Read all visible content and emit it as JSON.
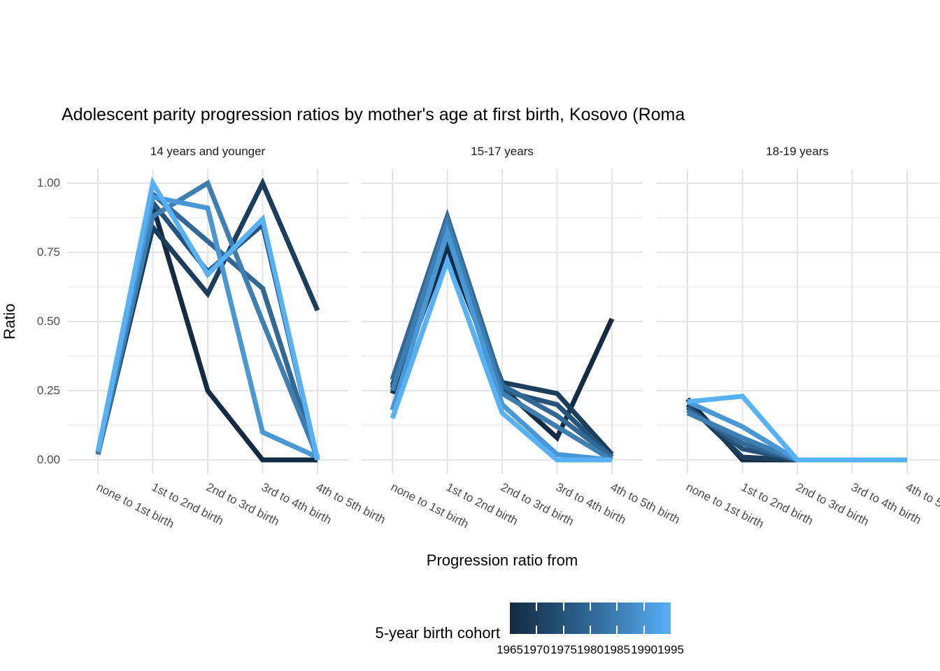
{
  "page": {
    "background": "#ffffff"
  },
  "chart_data": {
    "type": "line",
    "title": "Adolescent parity progression ratios by mother's age at first birth,  Kosovo (Roma",
    "xlabel": "Progression ratio from",
    "ylabel": "Ratio",
    "categories": [
      "none to 1st birth",
      "1st to 2nd birth",
      "2nd to 3rd birth",
      "3rd to 4th birth",
      "4th to 5th birth"
    ],
    "y_ticks": {
      "values": [
        1.0,
        0.75,
        0.5,
        0.25,
        0.0
      ],
      "labels": [
        "1.00",
        "0.75",
        "0.50",
        "0.25",
        "0.00"
      ]
    },
    "y_minor_ticks": [
      0.875,
      0.625,
      0.375,
      0.125
    ],
    "ylim": [
      0,
      1
    ],
    "grid": {
      "major_color": "#e4e4e4",
      "minor_color": "#efefef",
      "shown": true
    },
    "line_width": 7,
    "cohorts": [
      {
        "year": "1965",
        "color": "#132B43"
      },
      {
        "year": "1970",
        "color": "#1C3E5D"
      },
      {
        "year": "1975",
        "color": "#265379"
      },
      {
        "year": "1980",
        "color": "#316896"
      },
      {
        "year": "1985",
        "color": "#3D7EB3"
      },
      {
        "year": "1990",
        "color": "#4997D5"
      },
      {
        "year": "1995",
        "color": "#56B1F7"
      }
    ],
    "facets": [
      {
        "label": "14 years and younger",
        "series": [
          {
            "name": "1965",
            "values": [
              0.02,
              0.92,
              0.25,
              0.0,
              0.0
            ]
          },
          {
            "name": "1970",
            "values": [
              0.02,
              0.84,
              0.6,
              1.0,
              0.54
            ]
          },
          {
            "name": "1975",
            "values": [
              0.02,
              0.93,
              0.68,
              0.85,
              0.0
            ]
          },
          {
            "name": "1980",
            "values": [
              0.02,
              0.96,
              0.79,
              0.62,
              0.0
            ]
          },
          {
            "name": "1985",
            "values": [
              0.02,
              0.88,
              1.0,
              0.5,
              0.01
            ]
          },
          {
            "name": "1990",
            "values": [
              0.03,
              0.95,
              0.91,
              0.1,
              0.01
            ]
          },
          {
            "name": "1995",
            "values": [
              0.03,
              1.0,
              0.67,
              0.87,
              0.0
            ]
          }
        ]
      },
      {
        "label": "15-17 years",
        "series": [
          {
            "name": "1965",
            "values": [
              0.24,
              0.76,
              0.26,
              0.08,
              0.51
            ]
          },
          {
            "name": "1970",
            "values": [
              0.26,
              0.8,
              0.28,
              0.24,
              0.02
            ]
          },
          {
            "name": "1975",
            "values": [
              0.27,
              0.84,
              0.25,
              0.2,
              0.01
            ]
          },
          {
            "name": "1980",
            "values": [
              0.29,
              0.88,
              0.27,
              0.16,
              0.01
            ]
          },
          {
            "name": "1985",
            "values": [
              0.25,
              0.86,
              0.24,
              0.12,
              0.0
            ]
          },
          {
            "name": "1990",
            "values": [
              0.18,
              0.82,
              0.2,
              0.02,
              0.0
            ]
          },
          {
            "name": "1995",
            "values": [
              0.15,
              0.72,
              0.17,
              0.0,
              0.0
            ]
          }
        ]
      },
      {
        "label": "18-19 years",
        "series": [
          {
            "name": "1965",
            "values": [
              0.22,
              0.0,
              0.0,
              0.0,
              0.0
            ]
          },
          {
            "name": "1970",
            "values": [
              0.2,
              0.01,
              0.0,
              0.0,
              0.0
            ]
          },
          {
            "name": "1975",
            "values": [
              0.19,
              0.04,
              0.0,
              0.0,
              0.0
            ]
          },
          {
            "name": "1980",
            "values": [
              0.18,
              0.06,
              0.0,
              0.0,
              0.0
            ]
          },
          {
            "name": "1985",
            "values": [
              0.17,
              0.08,
              0.0,
              0.0,
              0.0
            ]
          },
          {
            "name": "1990",
            "values": [
              0.21,
              0.12,
              0.0,
              0.0,
              0.0
            ]
          },
          {
            "name": "1995",
            "values": [
              0.21,
              0.23,
              0.0,
              0.0,
              0.0
            ]
          }
        ]
      }
    ],
    "legend": {
      "title": "5-year birth cohort",
      "position": "bottom",
      "gradient": [
        "#132B43",
        "#56B1F7"
      ],
      "year_labels": [
        "1965",
        "1970",
        "1975",
        "1980",
        "1985",
        "1990",
        "1995"
      ],
      "interior_tick_years": [
        "1970",
        "1975",
        "1980",
        "1985",
        "1990"
      ]
    }
  }
}
